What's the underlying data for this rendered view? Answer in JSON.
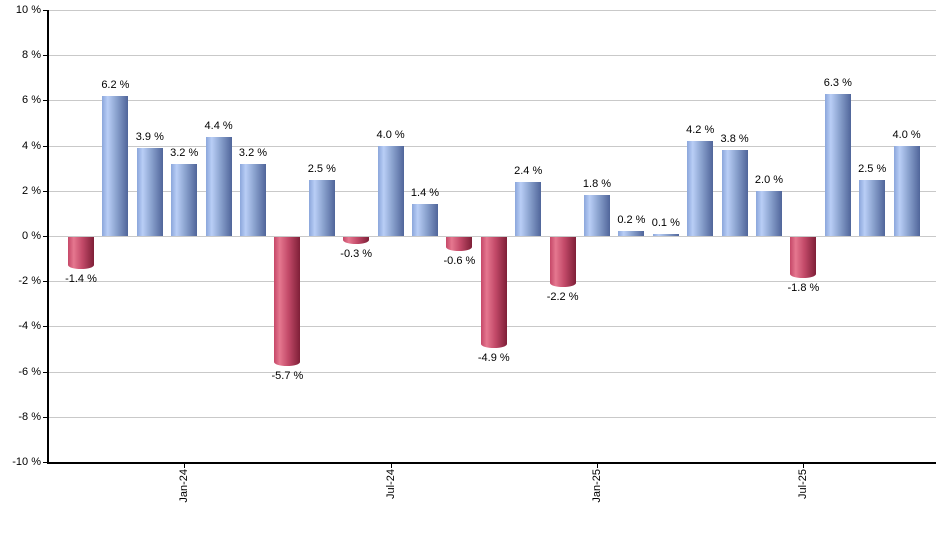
{
  "chart_data": {
    "type": "bar",
    "title": "",
    "xlabel": "",
    "ylabel": "",
    "ylim": [
      -10,
      10
    ],
    "y_tick_interval": 2,
    "grid": true,
    "legend": "none",
    "y_tick_labels": [
      "10 %",
      "8 %",
      "6 %",
      "4 %",
      "2 %",
      "0 %",
      "-2 %",
      "-4 %",
      "-6 %",
      "-8 %",
      "-10 %"
    ],
    "x_tick_labels": [
      {
        "bar_index": 3,
        "label": "Jan-24"
      },
      {
        "bar_index": 9,
        "label": "Jul-24"
      },
      {
        "bar_index": 15,
        "label": "Jan-25"
      },
      {
        "bar_index": 21,
        "label": "Jul-25"
      }
    ],
    "values": [
      -1.4,
      6.2,
      3.9,
      3.2,
      4.4,
      3.2,
      -5.7,
      2.5,
      -0.3,
      4.0,
      1.4,
      -0.6,
      -4.9,
      2.4,
      -2.2,
      1.8,
      0.2,
      0.1,
      4.2,
      3.8,
      2.0,
      -1.8,
      6.3,
      2.5,
      4.0
    ],
    "bar_labels": [
      "-1.4 %",
      "6.2 %",
      "3.9 %",
      "3.2 %",
      "4.4 %",
      "3.2 %",
      "-5.7 %",
      "2.5 %",
      "-0.3 %",
      "4.0 %",
      "1.4 %",
      "-0.6 %",
      "-4.9 %",
      "2.4 %",
      "-2.2 %",
      "1.8 %",
      "0.2 %",
      "0.1 %",
      "4.2 %",
      "3.8 %",
      "2.0 %",
      "-1.8 %",
      "6.3 %",
      "2.5 %",
      "4.0 %"
    ],
    "colors": {
      "positive_bar_edge": "#8ba6db",
      "positive_bar_light": "#b9cef6",
      "positive_bar_mid": "#8ba3cf",
      "positive_bar_dark": "#50659a",
      "negative_bar_edge": "#c54868",
      "negative_bar_light": "#e5778f",
      "negative_bar_mid": "#c34a69",
      "negative_bar_dark": "#7e1f37",
      "gridline": "#c9c9c9",
      "axis": "#000000",
      "text": "#000000",
      "background": "#ffffff"
    }
  }
}
